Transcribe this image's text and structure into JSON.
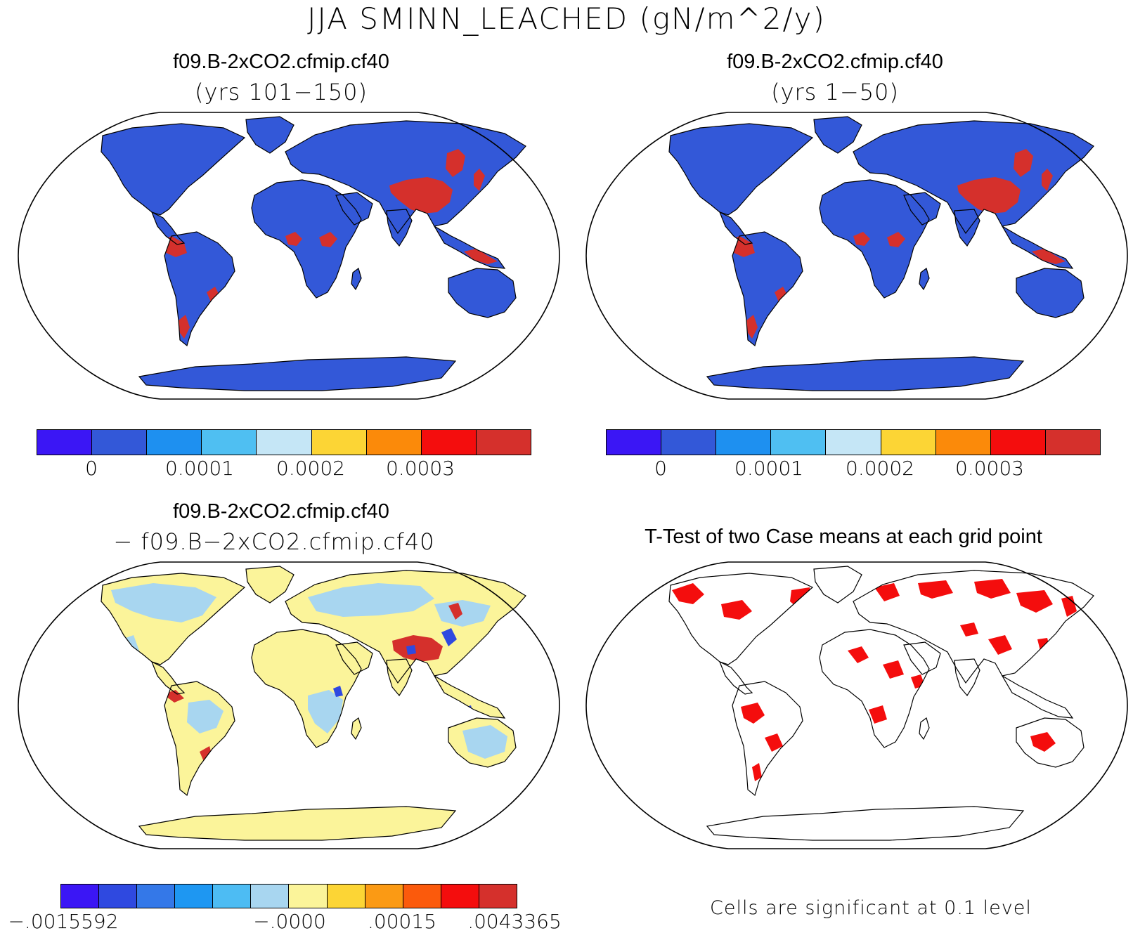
{
  "title": "JJA SMINN_LEACHED (gN/m^2/y)",
  "panels": [
    {
      "title": "f09.B-2xCO2.cfmip.cf40",
      "subtitle": "(yrs 101−150)"
    },
    {
      "title": "f09.B-2xCO2.cfmip.cf40",
      "subtitle": "(yrs 1−50)"
    },
    {
      "title": "f09.B-2xCO2.cfmip.cf40",
      "subtitle": "− f09.B−2xCO2.cfmip.cf40"
    },
    {
      "title": "T-Test of two Case means at each grid point",
      "subtitle": ""
    }
  ],
  "colorbar_abs": {
    "colors": [
      "#3b16f5",
      "#3358d8",
      "#1e90f0",
      "#4fbff2",
      "#c5e6f6",
      "#fcd535",
      "#fb8a0a",
      "#f40d0d",
      "#d5302c"
    ],
    "tick_labels": [
      "0",
      "0.0001",
      "0.0002",
      "0.0003"
    ]
  },
  "colorbar_diff": {
    "colors": [
      "#3b16f5",
      "#2f49e0",
      "#3478e8",
      "#1e97f2",
      "#4dbcf3",
      "#a8d6f0",
      "#fbf49a",
      "#fcd535",
      "#fb9a14",
      "#fb5a0c",
      "#f40d0d",
      "#d5302c"
    ],
    "tick_labels": [
      "−.0015592",
      "−.0000",
      ".00015",
      ".0043365"
    ]
  },
  "significance_note": "Cells are significant at 0.1 level",
  "map_colors": {
    "land_base_abs": "#3358d8",
    "land_base_diff": "#fbf49a",
    "hot": "#d5302c",
    "significant": "#f40d0d"
  }
}
